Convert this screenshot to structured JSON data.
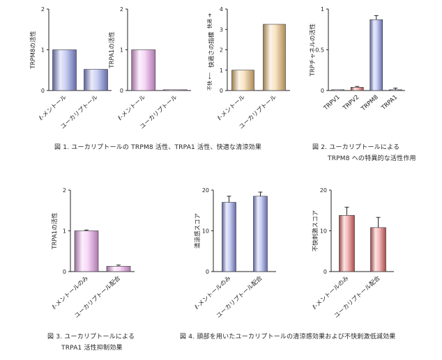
{
  "chart_data": [
    {
      "id": "c1",
      "type": "bar",
      "ylabel": "TRPM8の活性",
      "ylim": [
        0,
        2
      ],
      "ticks": [
        0,
        1,
        2
      ],
      "categories": [
        "ℓ-メントール",
        "ユーカリプトール"
      ],
      "values": [
        1.0,
        0.52
      ],
      "errors": [
        0,
        0
      ],
      "colors": [
        "#8c96e6",
        "#8c96e6"
      ]
    },
    {
      "id": "c2",
      "type": "bar",
      "ylabel": "TRPA1の活性",
      "ylim": [
        0,
        2
      ],
      "ticks": [
        0,
        1,
        2
      ],
      "categories": [
        "ℓ-メントール",
        "ユーカリプトール"
      ],
      "values": [
        1.0,
        0.02
      ],
      "errors": [
        0,
        0
      ],
      "colors": [
        "#f0a8f0",
        "#f0a8f0"
      ]
    },
    {
      "id": "c3",
      "type": "bar",
      "ylabel": "快適さの指標",
      "ylabel_top": "快適",
      "ylabel_bottom": "不快",
      "ylim": [
        0,
        4
      ],
      "ticks": [
        0,
        1,
        2,
        3,
        4
      ],
      "categories": [
        "ℓ-メントール",
        "ユーカリプトール"
      ],
      "values": [
        1.0,
        3.25
      ],
      "errors": [
        0,
        0
      ],
      "colors": [
        "#f0c27a",
        "#f0c27a"
      ]
    },
    {
      "id": "c4",
      "type": "bar",
      "ylabel": "TRPチャネルの活性",
      "ylim": [
        0,
        1
      ],
      "ticks": [
        0,
        0.5,
        1
      ],
      "categories": [
        "TRPV1",
        "TRPV2",
        "TRPM8",
        "TRPA1"
      ],
      "values": [
        0.01,
        0.04,
        0.87,
        0.01
      ],
      "errors": [
        0,
        0.01,
        0.05,
        0.02
      ],
      "colors": [
        "#8c96e6",
        "#e86a6a",
        "#8c96e6",
        "#8c96e6"
      ]
    },
    {
      "id": "c5",
      "type": "bar",
      "ylabel": "TRPA1の活性",
      "ylim": [
        0,
        2
      ],
      "ticks": [
        0,
        1,
        2
      ],
      "categories": [
        "ℓ-メントールのみ",
        "ユーカリプトール配合"
      ],
      "values": [
        1.0,
        0.13
      ],
      "errors": [
        0.02,
        0.03
      ],
      "colors": [
        "#f0a8f0",
        "#f0a8f0"
      ]
    },
    {
      "id": "c6",
      "type": "bar",
      "ylabel": "清涼感スコア",
      "ylim": [
        0,
        20
      ],
      "ticks": [
        0,
        10,
        20
      ],
      "categories": [
        "ℓ-メントールのみ",
        "ユーカリプトール配合"
      ],
      "values": [
        17.0,
        18.5
      ],
      "errors": [
        1.5,
        1.0
      ],
      "colors": [
        "#8c96e6",
        "#8c96e6"
      ]
    },
    {
      "id": "c7",
      "type": "bar",
      "ylabel": "不快刺激スコア",
      "ylim": [
        0,
        20
      ],
      "ticks": [
        0,
        10,
        20
      ],
      "categories": [
        "ℓ-メントールのみ",
        "ユーカリプトール配合"
      ],
      "values": [
        13.8,
        10.8
      ],
      "errors": [
        2.0,
        2.5
      ],
      "colors": [
        "#e86a6a",
        "#e86a6a"
      ]
    }
  ],
  "captions": {
    "fig1": "図 1. ユーカリプトールの TRPM8 活性、TRPA1 活性、快適な清涼効果",
    "fig2_line1": "図 2. ユーカリプトールによる",
    "fig2_line2": "TRPM8 への特異的な活性作用",
    "fig3_line1": "図 3. ユーカリプトールによる",
    "fig3_line2": "TRPA1 活性抑制効果",
    "fig4": "図 4. 頭部を用いたユーカリプトールの清涼感効果および不快刺激低減効果"
  }
}
